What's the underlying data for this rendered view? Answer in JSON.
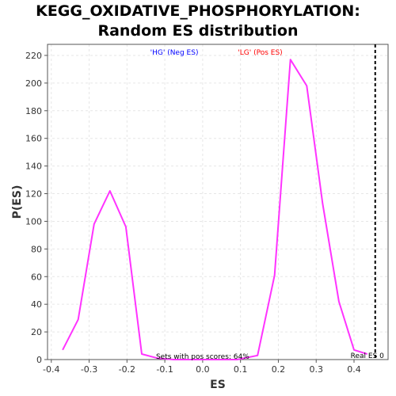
{
  "chart_data": {
    "type": "line",
    "title": "KEGG_OXIDATIVE_PHOSPHORYLATION:",
    "subtitle": "Random ES distribution",
    "xlabel": "ES",
    "ylabel": "P(ES)",
    "xlim": [
      -0.41,
      0.49
    ],
    "ylim": [
      0,
      228
    ],
    "xticks": [
      "-0.4",
      "-0.3",
      "-0.2",
      "-0.1",
      "0.0",
      "0.1",
      "0.2",
      "0.3",
      "0.4"
    ],
    "xtick_values": [
      -0.4,
      -0.3,
      -0.2,
      -0.1,
      0.0,
      0.1,
      0.2,
      0.3,
      0.4
    ],
    "yticks": [
      "0",
      "20",
      "40",
      "60",
      "80",
      "100",
      "120",
      "140",
      "160",
      "180",
      "200",
      "220"
    ],
    "ytick_values": [
      0,
      20,
      40,
      60,
      80,
      100,
      120,
      140,
      160,
      180,
      200,
      220
    ],
    "grid": true,
    "series": [
      {
        "color": "#ff33ff",
        "x": [
          -0.37,
          -0.329,
          -0.287,
          -0.245,
          -0.203,
          -0.161,
          -0.119,
          -0.077,
          -0.035,
          0.007,
          0.049,
          0.091,
          0.145,
          0.19,
          0.232,
          0.275,
          0.317,
          0.36,
          0.4,
          0.435
        ],
        "y": [
          7,
          29,
          98,
          122,
          96,
          4,
          1,
          0,
          0,
          0,
          0,
          0,
          3,
          61,
          217,
          198,
          113,
          42,
          7,
          4
        ]
      }
    ],
    "real_es": {
      "value": 0.456,
      "label": "Real ES 0"
    },
    "annotations": {
      "neg_label": "'HG' (Neg ES)",
      "pos_label": "'LG' (Pos ES)",
      "pos_scores": "Sets with pos scores: 64%"
    },
    "colors": {
      "line": "#ff33ff",
      "neg": "#0000ff",
      "pos": "#ff0000",
      "grid": "#e6e6e6",
      "plot_border": "#555555"
    }
  }
}
